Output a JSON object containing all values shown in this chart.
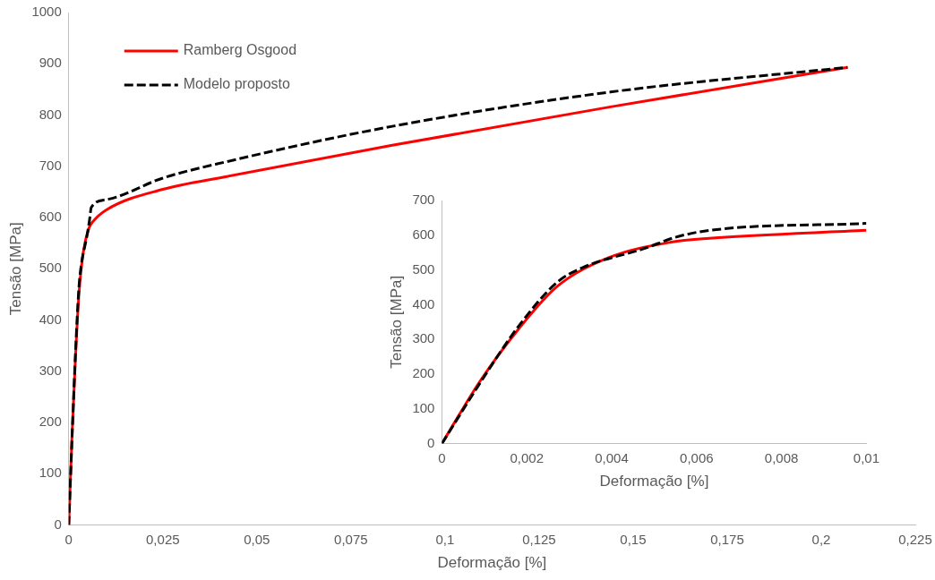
{
  "chart_data": [
    {
      "type": "line",
      "xlabel": "Deformação [%]",
      "ylabel": "Tensão [MPa]",
      "xlim": [
        0,
        0.225
      ],
      "ylim": [
        0,
        1000
      ],
      "xticks": [
        0,
        {
          "value": 0.025,
          "label": "0,025"
        },
        {
          "value": 0.05,
          "label": "0,05"
        },
        {
          "value": 0.075,
          "label": "0,075"
        },
        {
          "value": 0.1,
          "label": "0,1"
        },
        {
          "value": 0.125,
          "label": "0,125"
        },
        {
          "value": 0.15,
          "label": "0,15"
        },
        {
          "value": 0.175,
          "label": "0,175"
        },
        {
          "value": 0.2,
          "label": "0,2"
        },
        {
          "value": 0.225,
          "label": "0,225"
        }
      ],
      "yticks": [
        0,
        100,
        200,
        300,
        400,
        500,
        600,
        700,
        800,
        900,
        1000
      ],
      "grid": false,
      "legend": "top left",
      "marker": "none",
      "series": [
        {
          "name": "Ramberg Osgood",
          "color": "#ff0000",
          "line_style": "solid",
          "x": [
            0,
            0.0009,
            0.0018,
            0.0027,
            0.0039,
            0.0054,
            0.0063,
            0.01,
            0.025,
            0.042,
            0.086,
            0.144,
            0.207
          ],
          "values": [
            0,
            180,
            329,
            450,
            534,
            580,
            591,
            615,
            655,
            680,
            741,
            816,
            893
          ]
        },
        {
          "name": "Modelo proposto",
          "color": "#000000",
          "line_style": "dashed",
          "x": [
            0,
            0.00096,
            0.0018,
            0.0027,
            0.0033,
            0.0048,
            0.0055,
            0.006,
            0.01,
            0.025,
            0.042,
            0.086,
            0.144,
            0.207
          ],
          "values": [
            0,
            186,
            337,
            463,
            506,
            563,
            594,
            620,
            635,
            677,
            709,
            778,
            845,
            893
          ]
        }
      ]
    },
    {
      "type": "line",
      "xlabel": "Deformação [%]",
      "ylabel": "Tensão [MPa]",
      "xlim": [
        0,
        0.01
      ],
      "ylim": [
        0,
        700
      ],
      "xticks": [
        0,
        {
          "value": 0.002,
          "label": "0,002"
        },
        {
          "value": 0.004,
          "label": "0,004"
        },
        {
          "value": 0.006,
          "label": "0,006"
        },
        {
          "value": 0.008,
          "label": "0,008"
        },
        {
          "value": 0.01,
          "label": "0,01"
        }
      ],
      "yticks": [
        0,
        100,
        200,
        300,
        400,
        500,
        600,
        700
      ],
      "grid": false,
      "legend": false,
      "marker": "none",
      "series": [
        {
          "color": "#ff0000",
          "line_style": "solid",
          "x": [
            0,
            0.0009,
            0.0018,
            0.0027,
            0.0039,
            0.0054,
            0.0063,
            0.01
          ],
          "values": [
            0,
            180,
            329,
            451,
            534,
            580,
            591,
            614
          ]
        },
        {
          "color": "#000000",
          "line_style": "dashed",
          "x": [
            0,
            0.00096,
            0.0018,
            0.0027,
            0.0033,
            0.0048,
            0.0055,
            0.0063,
            0.01
          ],
          "values": [
            0,
            186,
            337,
            463,
            506,
            563,
            594,
            614,
            634
          ]
        }
      ]
    }
  ]
}
